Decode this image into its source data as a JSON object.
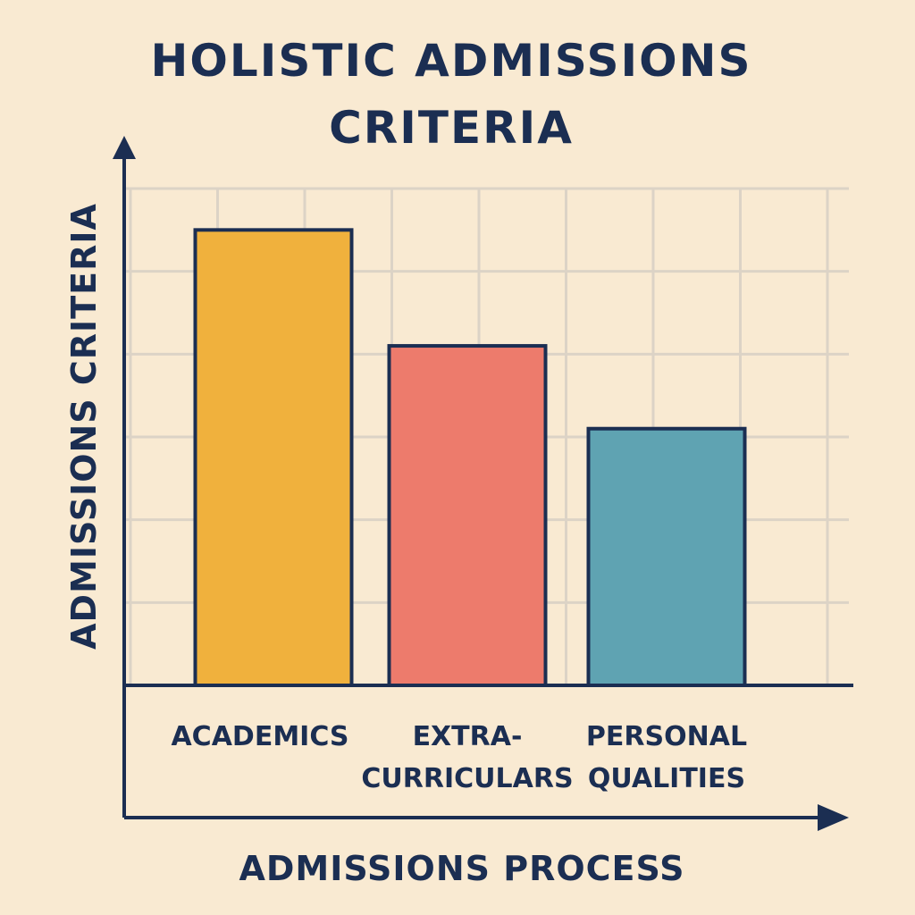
{
  "chart_data": {
    "type": "bar",
    "title": "HOLISTIC ADMISSIONS CRITERIA",
    "xlabel": "ADMISSIONS PROCESS",
    "ylabel": "ADMISSIONS CRITERIA",
    "categories": [
      "ACADEMICS",
      "EXTRA-CURRICULARS",
      "PERSONAL QUALITIES"
    ],
    "category_lines": [
      [
        "ACADEMICS"
      ],
      [
        "EXTRA-",
        "CURRICULARS"
      ],
      [
        "PERSONAL",
        "QUALITIES"
      ]
    ],
    "values": [
      5.5,
      4.1,
      3.1
    ],
    "ylim": [
      0,
      6
    ],
    "grid": true,
    "legend": "none",
    "colors": [
      "#f0b13d",
      "#ed7b6c",
      "#5fa3b2"
    ],
    "axis_color": "#1b2e52",
    "grid_color": "#dcd3c6",
    "background": "#f9ead2"
  }
}
